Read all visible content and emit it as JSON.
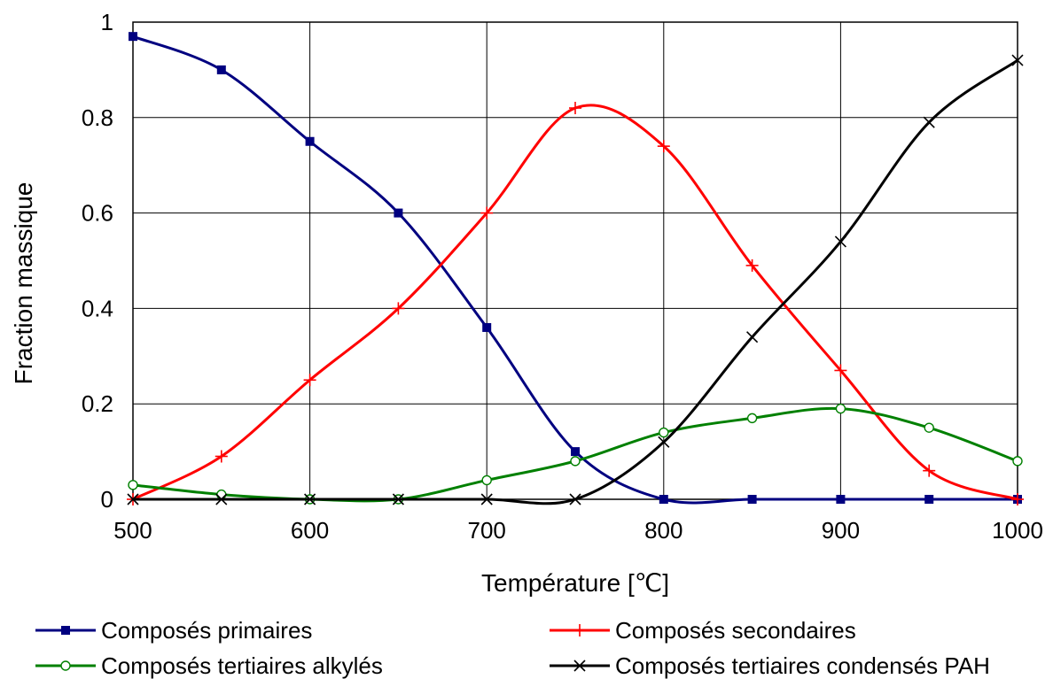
{
  "chart_data": {
    "type": "line",
    "xlabel": "Température [℃]",
    "ylabel": "Fraction massique",
    "xlim": [
      500,
      1000
    ],
    "ylim": [
      0,
      1
    ],
    "xticks": [
      "500",
      "600",
      "700",
      "800",
      "900",
      "1000"
    ],
    "yticks": [
      "0",
      "0.2",
      "0.4",
      "0.6",
      "0.8",
      "1"
    ],
    "grid": true,
    "legend_position": "bottom",
    "x": [
      500,
      550,
      600,
      650,
      700,
      750,
      800,
      850,
      900,
      950,
      1000
    ],
    "series": [
      {
        "name": "Composés primaires",
        "color": "#000080",
        "marker": "square",
        "values": [
          0.97,
          0.9,
          0.75,
          0.6,
          0.36,
          0.1,
          0.0,
          0.0,
          0.0,
          0.0,
          0.0
        ]
      },
      {
        "name": "Composés secondaires",
        "color": "#FF0000",
        "marker": "plus",
        "values": [
          0.0,
          0.09,
          0.25,
          0.4,
          0.6,
          0.82,
          0.74,
          0.49,
          0.27,
          0.06,
          0.0
        ]
      },
      {
        "name": "Composés tertiaires alkylés",
        "color": "#008000",
        "marker": "circle",
        "values": [
          0.03,
          0.01,
          0.0,
          0.0,
          0.04,
          0.08,
          0.14,
          0.17,
          0.19,
          0.15,
          0.08
        ]
      },
      {
        "name": "Composés tertiaires condensés PAH",
        "color": "#000000",
        "marker": "x",
        "values": [
          0.0,
          0.0,
          0.0,
          0.0,
          0.0,
          0.0,
          0.12,
          0.34,
          0.54,
          0.79,
          0.92
        ]
      }
    ]
  }
}
